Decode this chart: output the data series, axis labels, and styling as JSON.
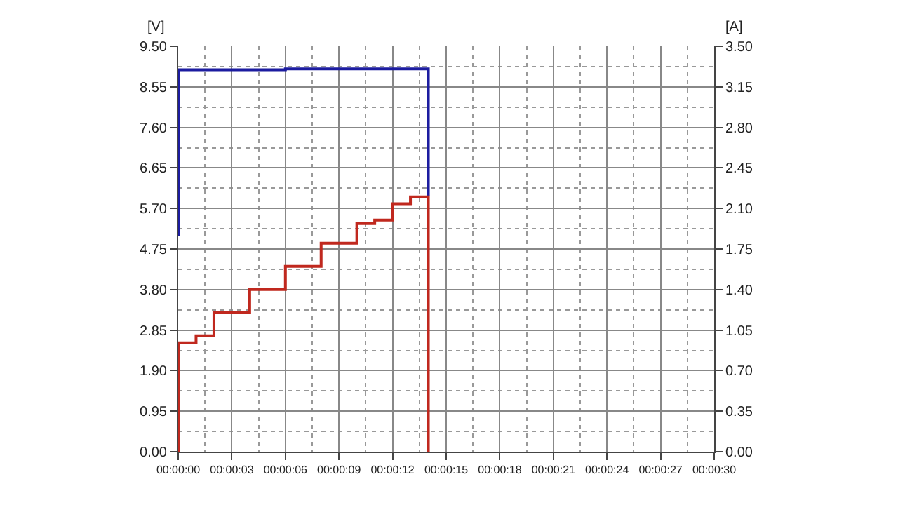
{
  "chart_data": {
    "type": "step",
    "ylabel": "[V]",
    "y2label": "[A]",
    "xlim": [
      0,
      30
    ],
    "xticks": [
      {
        "value": 0,
        "label": "00:00:00"
      },
      {
        "value": 3,
        "label": "00:00:03"
      },
      {
        "value": 6,
        "label": "00:00:06"
      },
      {
        "value": 9,
        "label": "00:00:09"
      },
      {
        "value": 12,
        "label": "00:00:12"
      },
      {
        "value": 15,
        "label": "00:00:15"
      },
      {
        "value": 18,
        "label": "00:00:18"
      },
      {
        "value": 21,
        "label": "00:00:21"
      },
      {
        "value": 24,
        "label": "00:00:24"
      },
      {
        "value": 27,
        "label": "00:00:27"
      },
      {
        "value": 30,
        "label": "00:00:30"
      }
    ],
    "ylim": [
      0,
      9.5
    ],
    "yticks": [
      {
        "value": 0,
        "label": "0.00"
      },
      {
        "value": 0.95,
        "label": "0.95"
      },
      {
        "value": 1.9,
        "label": "1.90"
      },
      {
        "value": 2.85,
        "label": "2.85"
      },
      {
        "value": 3.8,
        "label": "3.80"
      },
      {
        "value": 4.75,
        "label": "4.75"
      },
      {
        "value": 5.7,
        "label": "5.70"
      },
      {
        "value": 6.65,
        "label": "6.65"
      },
      {
        "value": 7.6,
        "label": "7.60"
      },
      {
        "value": 8.55,
        "label": "8.55"
      },
      {
        "value": 9.5,
        "label": "9.50"
      }
    ],
    "y2lim": [
      0,
      3.5
    ],
    "y2ticks": [
      {
        "value": 0,
        "label": "0.00"
      },
      {
        "value": 0.35,
        "label": "0.35"
      },
      {
        "value": 0.7,
        "label": "0.70"
      },
      {
        "value": 1.05,
        "label": "1.05"
      },
      {
        "value": 1.4,
        "label": "1.40"
      },
      {
        "value": 1.75,
        "label": "1.75"
      },
      {
        "value": 2.1,
        "label": "2.10"
      },
      {
        "value": 2.45,
        "label": "2.45"
      },
      {
        "value": 2.8,
        "label": "2.80"
      },
      {
        "value": 3.15,
        "label": "3.15"
      },
      {
        "value": 3.5,
        "label": "3.50"
      }
    ],
    "grid": true,
    "marker": "none",
    "line_style": "solid",
    "series": [
      {
        "color": "#1c1ca0",
        "x": [
          0,
          0,
          6,
          14,
          14
        ],
        "values": [
          5.05,
          8.95,
          8.97,
          8.97,
          5.99
        ]
      },
      {
        "color": "#c0281e",
        "axis": "y2",
        "x": [
          0,
          0,
          1,
          2,
          4,
          6,
          8,
          10,
          11,
          12,
          13,
          14,
          14
        ],
        "values": [
          0,
          0.94,
          1.0,
          1.2,
          1.4,
          1.6,
          1.8,
          1.97,
          2.0,
          2.14,
          2.2,
          2.2,
          0
        ]
      }
    ]
  }
}
